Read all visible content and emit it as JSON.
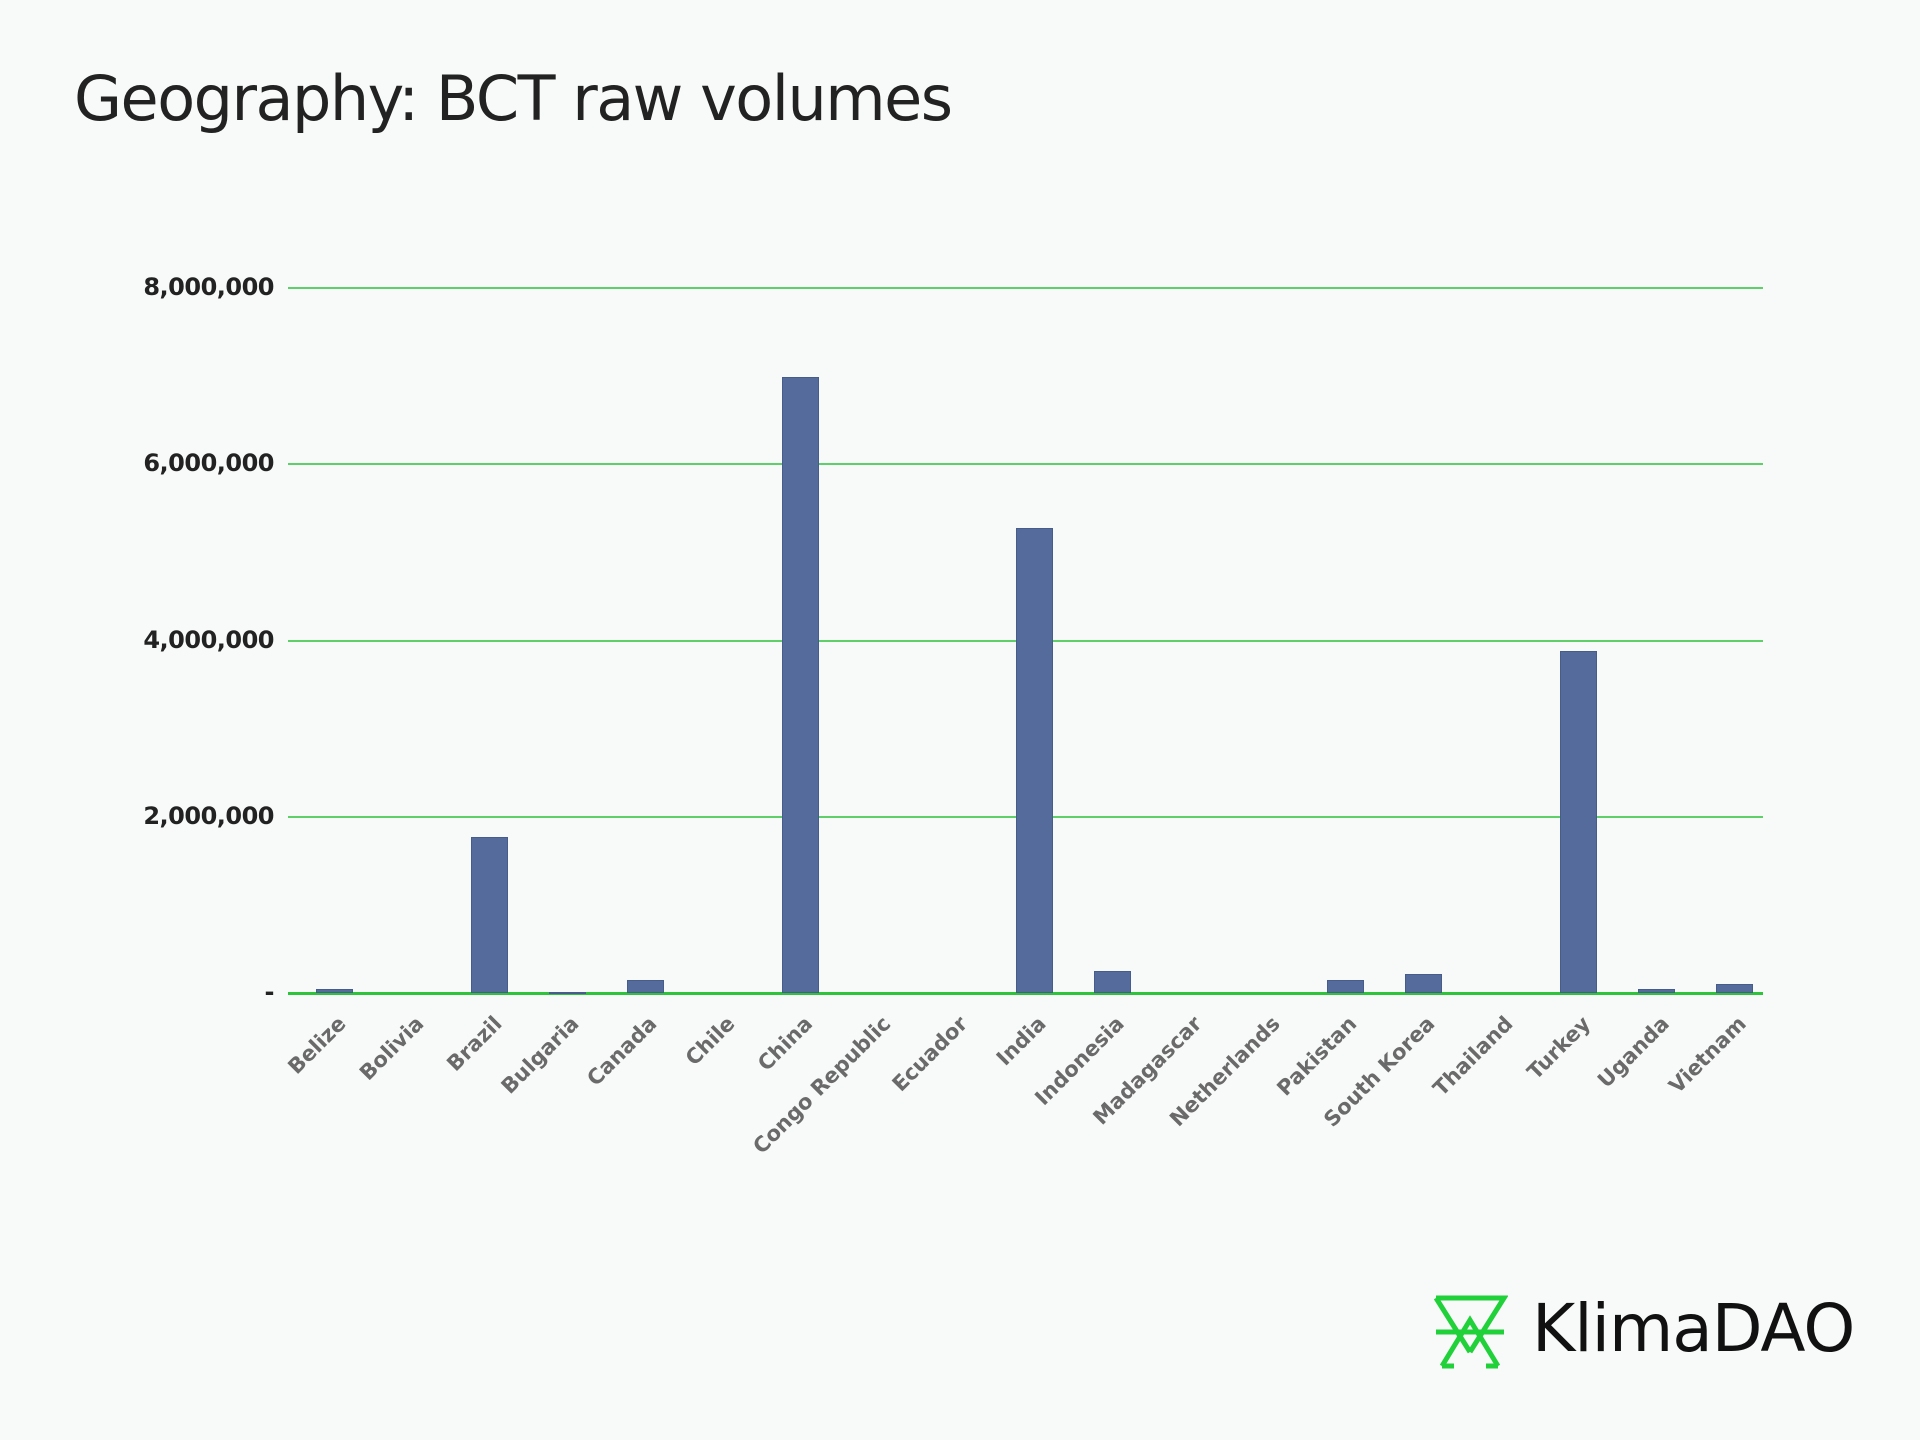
{
  "title": "Geography: BCT raw volumes",
  "brand": {
    "name": "KlimaDAO",
    "color": "#21d13a"
  },
  "colors": {
    "bar": "#546b9c",
    "grid": "#5fcf6a",
    "axis": "#2dc43a",
    "text": "#222222",
    "tick_label": "#6a6a6a"
  },
  "chart_data": {
    "type": "bar",
    "title": "Geography: BCT raw volumes",
    "xlabel": "",
    "ylabel": "",
    "ylim": [
      0,
      8000000
    ],
    "grid": true,
    "legend": null,
    "yticks": [
      0,
      2000000,
      4000000,
      6000000,
      8000000
    ],
    "ytick_labels": [
      "-",
      "2,000,000",
      "4,000,000",
      "6,000,000",
      "8,000,000"
    ],
    "categories": [
      "Belize",
      "Bolivia",
      "Brazil",
      "Bulgaria",
      "Canada",
      "Chile",
      "China",
      "Congo Republic",
      "Ecuador",
      "India",
      "Indonesia",
      "Madagascar",
      "Netherlands",
      "Pakistan",
      "South Korea",
      "Thailand",
      "Turkey",
      "Uganda",
      "Vietnam"
    ],
    "values": [
      45000,
      0,
      1770000,
      10000,
      150000,
      0,
      6990000,
      0,
      0,
      5280000,
      250000,
      0,
      0,
      150000,
      210000,
      0,
      3880000,
      40000,
      100000
    ]
  }
}
